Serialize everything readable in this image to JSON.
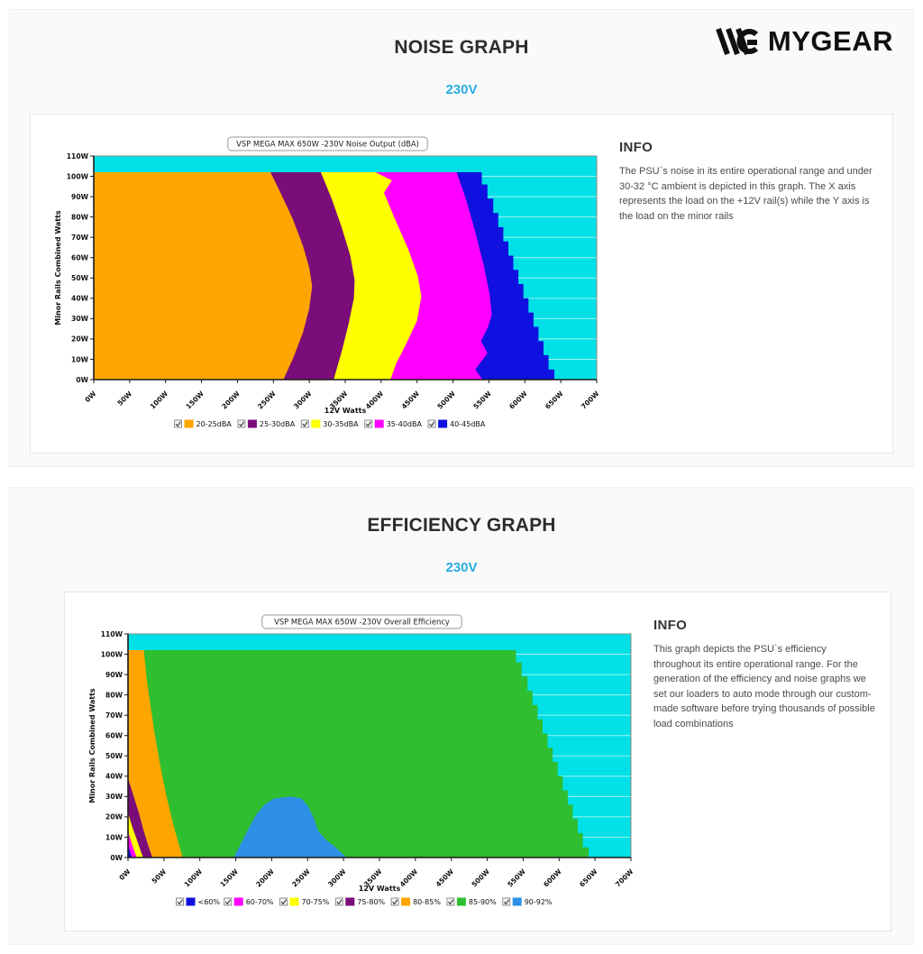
{
  "logo": {
    "text": "MYGEAR"
  },
  "sections": [
    {
      "title": "NOISE GRAPH",
      "voltage": "230V",
      "info_title": "INFO",
      "info_text": "The PSU`s noise in its entire operational range and under 30-32 °C ambient is depicted in this graph. The X axis represents the load on the +12V rail(s) while the Y axis is the load on the minor rails"
    },
    {
      "title": "EFFICIENCY GRAPH",
      "voltage": "230V",
      "info_title": "INFO",
      "info_text": "This graph depicts the PSU`s efficiency throughout its entire operational range. For the generation of the efficiency and noise graphs we set our loaders to auto mode through our custom-made software before trying thousands of possible load combinations"
    }
  ],
  "chart_data": [
    {
      "type": "area",
      "name": "noise-output-map",
      "title": "VSP MEGA MAX 650W -230V Noise Output (dBA)",
      "xlabel": "12V Watts",
      "ylabel": "Minor Rails Combined Watts",
      "xlim": [
        0,
        700
      ],
      "ylim": [
        0,
        110
      ],
      "x_tick_step": 50,
      "y_tick_step": 10,
      "unit": "W",
      "grid": true,
      "legend_position": "bottom",
      "background_color": "#00e0e6",
      "grid_color": "#9ef3ef",
      "legend": [
        {
          "label": "20-25dBA",
          "color": "#ffa500"
        },
        {
          "label": "25-30dBA",
          "color": "#7a0d7a"
        },
        {
          "label": "30-35dBA",
          "color": "#ffff00"
        },
        {
          "label": "35-40dBA",
          "color": "#ff00ff"
        },
        {
          "label": "40-45dBA",
          "color": "#1010e0"
        }
      ],
      "regions": [
        {
          "label": "40-45dBA",
          "color": "#1010e0",
          "points": [
            [
              0,
              0
            ],
            [
              0,
              102
            ],
            [
              540,
              102
            ],
            [
              540,
              96
            ],
            [
              548,
              96
            ],
            [
              548,
              89
            ],
            [
              556,
              89
            ],
            [
              556,
              82
            ],
            [
              563,
              82
            ],
            [
              563,
              75
            ],
            [
              570,
              75
            ],
            [
              570,
              68
            ],
            [
              577,
              68
            ],
            [
              577,
              61
            ],
            [
              584,
              61
            ],
            [
              584,
              54
            ],
            [
              591,
              54
            ],
            [
              591,
              47
            ],
            [
              598,
              47
            ],
            [
              598,
              40
            ],
            [
              605,
              40
            ],
            [
              605,
              33
            ],
            [
              612,
              33
            ],
            [
              612,
              26
            ],
            [
              619,
              26
            ],
            [
              619,
              19
            ],
            [
              626,
              19
            ],
            [
              626,
              12
            ],
            [
              633,
              12
            ],
            [
              633,
              5
            ],
            [
              641,
              5
            ],
            [
              641,
              0
            ],
            [
              650,
              0
            ]
          ]
        },
        {
          "label": "35-40dBA",
          "color": "#ff00ff",
          "points": [
            [
              0,
              0
            ],
            [
              0,
              102
            ],
            [
              505,
              102
            ],
            [
              517,
              90
            ],
            [
              530,
              74
            ],
            [
              543,
              56
            ],
            [
              551,
              42
            ],
            [
              554,
              32
            ],
            [
              549,
              26
            ],
            [
              539,
              19
            ],
            [
              548,
              13
            ],
            [
              531,
              5
            ],
            [
              541,
              0
            ]
          ]
        },
        {
          "label": "30-35dBA",
          "color": "#ffff00",
          "points": [
            [
              0,
              0
            ],
            [
              0,
              102
            ],
            [
              392,
              102
            ],
            [
              415,
              98
            ],
            [
              404,
              92
            ],
            [
              418,
              80
            ],
            [
              438,
              64
            ],
            [
              451,
              51
            ],
            [
              456,
              41
            ],
            [
              450,
              29
            ],
            [
              434,
              17
            ],
            [
              421,
              8
            ],
            [
              413,
              0
            ]
          ]
        },
        {
          "label": "25-30dBA",
          "color": "#7a0d7a",
          "points": [
            [
              0,
              0
            ],
            [
              0,
              102
            ],
            [
              316,
              102
            ],
            [
              331,
              89
            ],
            [
              345,
              75
            ],
            [
              357,
              61
            ],
            [
              363,
              49
            ],
            [
              362,
              40
            ],
            [
              355,
              28
            ],
            [
              346,
              15
            ],
            [
              338,
              5
            ],
            [
              334,
              0
            ]
          ]
        },
        {
          "label": "20-25dBA",
          "color": "#ffa500",
          "points": [
            [
              0,
              0
            ],
            [
              0,
              102
            ],
            [
              246,
              102
            ],
            [
              261,
              91
            ],
            [
              277,
              79
            ],
            [
              291,
              66
            ],
            [
              300,
              55
            ],
            [
              304,
              46
            ],
            [
              300,
              35
            ],
            [
              291,
              23
            ],
            [
              278,
              11
            ],
            [
              264,
              0
            ]
          ]
        }
      ]
    },
    {
      "type": "area",
      "name": "overall-efficiency-map",
      "title": "VSP MEGA MAX 650W -230V Overall Efficiency",
      "xlabel": "12V Watts",
      "ylabel": "Minor Rails Combined Watts",
      "xlim": [
        0,
        700
      ],
      "ylim": [
        0,
        110
      ],
      "x_tick_step": 50,
      "y_tick_step": 10,
      "unit": "W",
      "grid": true,
      "legend_position": "bottom",
      "background_color": "#00e0e6",
      "grid_color": "#9ef3ef",
      "legend": [
        {
          "label": "<60%",
          "color": "#1010e0"
        },
        {
          "label": "60-70%",
          "color": "#ff00ff"
        },
        {
          "label": "70-75%",
          "color": "#ffff00"
        },
        {
          "label": "75-80%",
          "color": "#7a0d7a"
        },
        {
          "label": "80-85%",
          "color": "#ffa500"
        },
        {
          "label": "85-90%",
          "color": "#2fbe2f"
        },
        {
          "label": "90-92%",
          "color": "#2e8fe6"
        }
      ],
      "regions": [
        {
          "label": "85-90%",
          "color": "#2fbe2f",
          "points": [
            [
              0,
              0
            ],
            [
              0,
              102
            ],
            [
              540,
              102
            ],
            [
              540,
              96
            ],
            [
              548,
              96
            ],
            [
              548,
              89
            ],
            [
              556,
              89
            ],
            [
              556,
              82
            ],
            [
              563,
              82
            ],
            [
              563,
              75
            ],
            [
              570,
              75
            ],
            [
              570,
              68
            ],
            [
              577,
              68
            ],
            [
              577,
              61
            ],
            [
              584,
              61
            ],
            [
              584,
              54
            ],
            [
              591,
              54
            ],
            [
              591,
              47
            ],
            [
              598,
              47
            ],
            [
              598,
              40
            ],
            [
              605,
              40
            ],
            [
              605,
              33
            ],
            [
              612,
              33
            ],
            [
              612,
              26
            ],
            [
              619,
              26
            ],
            [
              619,
              19
            ],
            [
              626,
              19
            ],
            [
              626,
              12
            ],
            [
              633,
              12
            ],
            [
              633,
              5
            ],
            [
              641,
              5
            ],
            [
              641,
              0
            ],
            [
              650,
              0
            ]
          ]
        },
        {
          "label": "80-85%",
          "color": "#ffa500",
          "points": [
            [
              0,
              0
            ],
            [
              0,
              102
            ],
            [
              22,
              102
            ],
            [
              26,
              88
            ],
            [
              32,
              73
            ],
            [
              38,
              59
            ],
            [
              45,
              45
            ],
            [
              53,
              31
            ],
            [
              64,
              15
            ],
            [
              76,
              0
            ]
          ]
        },
        {
          "label": "75-80%",
          "color": "#7a0d7a",
          "points": [
            [
              0,
              0
            ],
            [
              0,
              39
            ],
            [
              8,
              30
            ],
            [
              15,
              22
            ],
            [
              22,
              13
            ],
            [
              29,
              5
            ],
            [
              34,
              0
            ]
          ]
        },
        {
          "label": "70-75%",
          "color": "#ffff00",
          "points": [
            [
              0,
              0
            ],
            [
              0,
              22
            ],
            [
              6,
              15
            ],
            [
              12,
              9
            ],
            [
              18,
              3
            ],
            [
              21,
              0
            ]
          ]
        },
        {
          "label": "60-70%",
          "color": "#ff00ff",
          "points": [
            [
              0,
              0
            ],
            [
              0,
              13
            ],
            [
              5,
              7
            ],
            [
              9,
              3
            ],
            [
              12,
              0
            ]
          ]
        },
        {
          "label": "<60%",
          "color": "#1010e0",
          "points": [
            [
              0,
              0
            ],
            [
              0,
              6
            ],
            [
              3,
              3
            ],
            [
              5,
              0
            ]
          ]
        },
        {
          "label": "90-92%",
          "color": "#2e8fe6",
          "points": [
            [
              147,
              0
            ],
            [
              156,
              6
            ],
            [
              166,
              13
            ],
            [
              178,
              21
            ],
            [
              190,
              26
            ],
            [
              203,
              29
            ],
            [
              226,
              30
            ],
            [
              242,
              29
            ],
            [
              251,
              25
            ],
            [
              259,
              19
            ],
            [
              265,
              13
            ],
            [
              275,
              9
            ],
            [
              289,
              5
            ],
            [
              304,
              0
            ]
          ]
        }
      ]
    }
  ]
}
